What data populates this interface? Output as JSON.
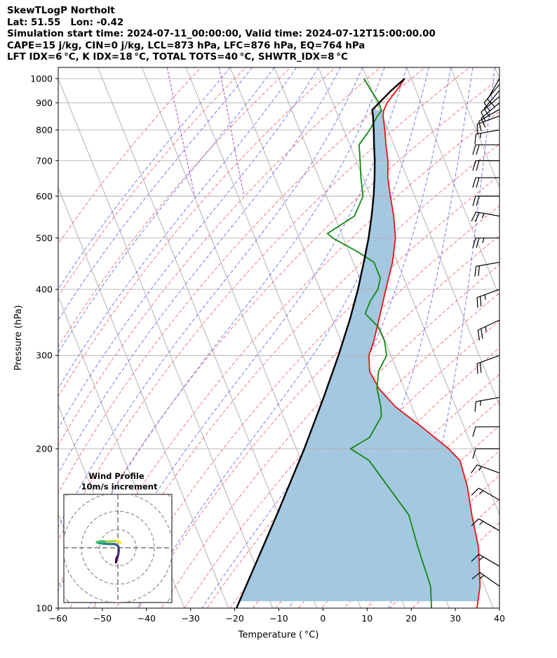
{
  "header": {
    "line1": "SkewTLogP Northolt",
    "line2": "Lat: 51.55   Lon: -0.42",
    "line3": "Simulation start time: 2024-07-11_00:00:00, Valid time: 2024-07-12T15:00:00.00",
    "line4": "CAPE=15 j/kg, CIN=0 j/kg, LCL=873 hPa, LFC=876 hPa, EQ=764 hPa",
    "line5": "LFT IDX=6 °C, K IDX=18 °C, TOTAL TOTS=40 °C, SHWTR_IDX=8 °C"
  },
  "inset": {
    "title_line1": "Wind Profile",
    "title_line2": "10m/s increment"
  },
  "colors": {
    "temperature": "#ee1111",
    "dewpoint": "#118811",
    "parcel": "#000000",
    "cape_fill": "#9fc5de",
    "isotherm": "#aaaaaa",
    "dry_adiabat": "#f26060",
    "moist_adiabat": "#4a5cf0",
    "mixing_ratio": "#a040c0",
    "grid": "#b0b0b0"
  },
  "chart_data": {
    "type": "line",
    "title": "",
    "xlabel": "Temperature ( °C)",
    "ylabel": "Pressure (hPa)",
    "xlim": [
      -60,
      40
    ],
    "ylim": [
      1050,
      100
    ],
    "y_scale": "log",
    "x_ticks": [
      "−60",
      "−50",
      "−40",
      "−30",
      "−20",
      "−10",
      "0",
      "10",
      "20",
      "30",
      "40"
    ],
    "x_tick_values": [
      -60,
      -50,
      -40,
      -30,
      -20,
      -10,
      0,
      10,
      20,
      30,
      40
    ],
    "y_ticks": [
      "1000",
      "900",
      "800",
      "700",
      "600",
      "500",
      "400",
      "300",
      "200",
      "100"
    ],
    "y_tick_values": [
      1000,
      900,
      800,
      700,
      600,
      500,
      400,
      300,
      200,
      100
    ],
    "skew_deg_per_log_unit": 48.6,
    "grid": true,
    "series": [
      {
        "key": "temperature",
        "points": [
          [
            1000,
            18.5
          ],
          [
            950,
            15.6
          ],
          [
            900,
            12.3
          ],
          [
            870,
            10.8
          ],
          [
            850,
            10.2
          ],
          [
            800,
            9.3
          ],
          [
            750,
            8.2
          ],
          [
            700,
            7.2
          ],
          [
            650,
            5.6
          ],
          [
            600,
            4.5
          ],
          [
            550,
            3.4
          ],
          [
            500,
            1.8
          ],
          [
            450,
            -1.1
          ],
          [
            400,
            -5.1
          ],
          [
            350,
            -9.5
          ],
          [
            320,
            -12.5
          ],
          [
            300,
            -15.0
          ],
          [
            280,
            -16.3
          ],
          [
            260,
            -15.8
          ],
          [
            240,
            -13.7
          ],
          [
            220,
            -9.6
          ],
          [
            200,
            -5.5
          ],
          [
            190,
            -4.0
          ],
          [
            170,
            -4.7
          ],
          [
            150,
            -6.3
          ],
          [
            130,
            -7.8
          ],
          [
            110,
            -11.0
          ],
          [
            100,
            -13.7
          ]
        ]
      },
      {
        "key": "dewpoint",
        "points": [
          [
            1000,
            9.3
          ],
          [
            950,
            9.8
          ],
          [
            900,
            10.5
          ],
          [
            870,
            10.3
          ],
          [
            850,
            8.9
          ],
          [
            800,
            5.9
          ],
          [
            750,
            2.1
          ],
          [
            700,
            0.9
          ],
          [
            650,
            -0.5
          ],
          [
            600,
            -1.7
          ],
          [
            550,
            -5.5
          ],
          [
            510,
            -13.2
          ],
          [
            500,
            -12.4
          ],
          [
            470,
            -7.9
          ],
          [
            450,
            -5.3
          ],
          [
            420,
            -5.3
          ],
          [
            400,
            -6.9
          ],
          [
            380,
            -9.7
          ],
          [
            360,
            -12.0
          ],
          [
            340,
            -10.3
          ],
          [
            320,
            -10.1
          ],
          [
            300,
            -11.0
          ],
          [
            280,
            -14.3
          ],
          [
            260,
            -16.2
          ],
          [
            240,
            -17.0
          ],
          [
            230,
            -17.8
          ],
          [
            210,
            -22.4
          ],
          [
            200,
            -27.7
          ],
          [
            190,
            -24.6
          ],
          [
            150,
            -20.6
          ],
          [
            130,
            -21.5
          ],
          [
            110,
            -22.2
          ],
          [
            100,
            -24.0
          ]
        ]
      },
      {
        "key": "parcel",
        "points": [
          [
            1000,
            18.5
          ],
          [
            950,
            14.4
          ],
          [
            900,
            10.5
          ],
          [
            873,
            8.3
          ],
          [
            850,
            7.9
          ],
          [
            800,
            6.8
          ],
          [
            750,
            5.5
          ],
          [
            700,
            4.2
          ],
          [
            650,
            2.6
          ],
          [
            600,
            0.7
          ],
          [
            550,
            -1.6
          ],
          [
            500,
            -4.3
          ],
          [
            450,
            -7.6
          ],
          [
            400,
            -11.4
          ],
          [
            350,
            -16.1
          ],
          [
            300,
            -21.9
          ],
          [
            250,
            -29.1
          ],
          [
            200,
            -38.2
          ],
          [
            150,
            -50.5
          ],
          [
            100,
            -68.2
          ]
        ]
      }
    ],
    "cape_region": {
      "bottom_hpa": 873,
      "top_hpa": 100
    },
    "wind_barbs": [
      {
        "p": 1000,
        "speed_kt": 10,
        "dir_deg": 210
      },
      {
        "p": 975,
        "speed_kt": 10,
        "dir_deg": 220
      },
      {
        "p": 950,
        "speed_kt": 10,
        "dir_deg": 220
      },
      {
        "p": 925,
        "speed_kt": 10,
        "dir_deg": 230
      },
      {
        "p": 900,
        "speed_kt": 10,
        "dir_deg": 230
      },
      {
        "p": 875,
        "speed_kt": 10,
        "dir_deg": 240
      },
      {
        "p": 850,
        "speed_kt": 10,
        "dir_deg": 250
      },
      {
        "p": 800,
        "speed_kt": 15,
        "dir_deg": 260
      },
      {
        "p": 750,
        "speed_kt": 20,
        "dir_deg": 270
      },
      {
        "p": 700,
        "speed_kt": 20,
        "dir_deg": 270
      },
      {
        "p": 650,
        "speed_kt": 20,
        "dir_deg": 270
      },
      {
        "p": 600,
        "speed_kt": 20,
        "dir_deg": 270
      },
      {
        "p": 550,
        "speed_kt": 25,
        "dir_deg": 280
      },
      {
        "p": 500,
        "speed_kt": 25,
        "dir_deg": 270
      },
      {
        "p": 450,
        "speed_kt": 20,
        "dir_deg": 260
      },
      {
        "p": 400,
        "speed_kt": 25,
        "dir_deg": 250
      },
      {
        "p": 350,
        "speed_kt": 25,
        "dir_deg": 245
      },
      {
        "p": 300,
        "speed_kt": 20,
        "dir_deg": 250
      },
      {
        "p": 250,
        "speed_kt": 15,
        "dir_deg": 260
      },
      {
        "p": 220,
        "speed_kt": 10,
        "dir_deg": 270
      },
      {
        "p": 200,
        "speed_kt": 10,
        "dir_deg": 270
      },
      {
        "p": 180,
        "speed_kt": 15,
        "dir_deg": 290
      },
      {
        "p": 160,
        "speed_kt": 15,
        "dir_deg": 300
      },
      {
        "p": 140,
        "speed_kt": 15,
        "dir_deg": 300
      },
      {
        "p": 120,
        "speed_kt": 15,
        "dir_deg": 300
      },
      {
        "p": 110,
        "speed_kt": 15,
        "dir_deg": 305
      }
    ],
    "wind_profile_hodograph": {
      "rings_ms": [
        10,
        20,
        30,
        40
      ],
      "points_uv_ms": [
        [
          -1.0,
          -8.0
        ],
        [
          -0.8,
          -6.0
        ],
        [
          0.2,
          -4.0
        ],
        [
          0.5,
          -1.5
        ],
        [
          0.3,
          0.8
        ],
        [
          -1.5,
          2.0
        ],
        [
          -3.5,
          2.0
        ],
        [
          -6.0,
          2.1
        ],
        [
          -8.5,
          2.3
        ],
        [
          -10.5,
          2.6
        ],
        [
          -11.5,
          3.0
        ],
        [
          -9.5,
          3.6
        ],
        [
          -6.0,
          3.4
        ],
        [
          -3.0,
          3.5
        ],
        [
          -0.5,
          3.8
        ],
        [
          1.0,
          3.2
        ],
        [
          1.5,
          2.5
        ]
      ]
    }
  }
}
